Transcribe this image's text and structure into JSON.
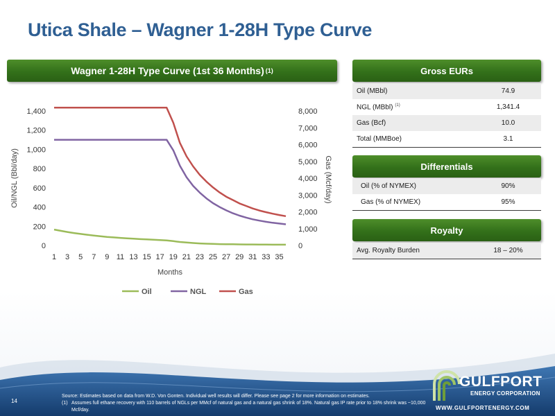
{
  "slide": {
    "title": "Utica Shale – Wagner 1-28H Type Curve",
    "page_number": "14"
  },
  "chart_header": {
    "text": "Wagner 1-28H Type Curve (1st 36 Months)",
    "footnote_mark": "(1)"
  },
  "chart_data": {
    "type": "line",
    "xlabel": "Months",
    "ylabel": "Oil/NGL (Bbl/day)",
    "y2label": "Gas (Mcf/day)",
    "x": [
      1,
      2,
      3,
      4,
      5,
      6,
      7,
      8,
      9,
      10,
      11,
      12,
      13,
      14,
      15,
      16,
      17,
      18,
      19,
      20,
      21,
      22,
      23,
      24,
      25,
      26,
      27,
      28,
      29,
      30,
      31,
      32,
      33,
      34,
      35,
      36
    ],
    "x_tick_labels": [
      "1",
      "3",
      "5",
      "7",
      "9",
      "11",
      "13",
      "15",
      "17",
      "19",
      "21",
      "23",
      "25",
      "27",
      "29",
      "31",
      "33",
      "35"
    ],
    "ylim": [
      0,
      1400
    ],
    "y_tick_labels": [
      "0",
      "200",
      "400",
      "600",
      "800",
      "1,000",
      "1,200",
      "1,400"
    ],
    "y2lim": [
      0,
      8000
    ],
    "y2_tick_labels": [
      "0",
      "1,000",
      "2,000",
      "3,000",
      "4,000",
      "5,000",
      "6,000",
      "7,000",
      "8,000"
    ],
    "legend_position": "bottom",
    "grid": false,
    "series": [
      {
        "name": "Oil",
        "axis": "left",
        "color": "#9bbb59",
        "values": [
          165,
          152,
          140,
          129,
          120,
          111,
          103,
          96,
          89,
          84,
          79,
          74,
          70,
          66,
          63,
          59,
          56,
          53,
          45,
          36,
          30,
          25,
          21,
          18,
          16,
          14,
          13,
          12,
          11,
          10,
          10,
          9,
          9,
          8,
          8,
          8
        ]
      },
      {
        "name": "NGL",
        "axis": "left",
        "color": "#8064a2",
        "values": [
          1100,
          1100,
          1100,
          1100,
          1100,
          1100,
          1100,
          1100,
          1100,
          1100,
          1100,
          1100,
          1100,
          1100,
          1100,
          1100,
          1100,
          1100,
          990,
          830,
          710,
          620,
          550,
          490,
          440,
          400,
          365,
          335,
          310,
          290,
          272,
          258,
          246,
          236,
          228,
          220
        ]
      },
      {
        "name": "Gas",
        "axis": "right",
        "color": "#c0504d",
        "values": [
          8200,
          8200,
          8200,
          8200,
          8200,
          8200,
          8200,
          8200,
          8200,
          8200,
          8200,
          8200,
          8200,
          8200,
          8200,
          8200,
          8200,
          8200,
          7300,
          6100,
          5300,
          4700,
          4200,
          3800,
          3450,
          3150,
          2900,
          2700,
          2500,
          2350,
          2200,
          2080,
          1980,
          1890,
          1810,
          1740
        ]
      }
    ]
  },
  "gross_eurs": {
    "header": "Gross EURs",
    "rows": [
      {
        "label": "Oil (MBbl)",
        "note": "",
        "value": "74.9"
      },
      {
        "label": "NGL (MBbl)",
        "note": "(1)",
        "value": "1,341.4"
      },
      {
        "label": "Gas (Bcf)",
        "note": "",
        "value": "10.0"
      },
      {
        "label": "Total (MMBoe)",
        "note": "",
        "value": "3.1"
      }
    ]
  },
  "differentials": {
    "header": "Differentials",
    "rows": [
      {
        "label": "Oil (% of NYMEX)",
        "value": "90%"
      },
      {
        "label": "Gas (% of NYMEX)",
        "value": "95%"
      }
    ]
  },
  "royalty": {
    "header": "Royalty",
    "rows": [
      {
        "label": "Avg. Royalty Burden",
        "value": "18 – 20%"
      }
    ]
  },
  "footnotes": {
    "source": "Source: Estimates based on data from W.D. Von Gonten. Individual well results will differ. Please see page 2 for more information on estimates.",
    "note1_mark": "(1)",
    "note1_text": "Assumes full ethane recovery with 110 barrels of NGLs per MMcf of natural gas and a natural gas shrink of 18%. Natural gas IP rate prior to 18% shrink was ~10,000 Mcf/day."
  },
  "logo": {
    "name": "GULFPORT",
    "tagline": "ENERGY CORPORATION",
    "url": "WWW.GULFPORTENERGY.COM"
  },
  "colors": {
    "title_blue": "#2f5f93",
    "header_green": "#33701a",
    "footer_blue": "#1d4a82"
  }
}
